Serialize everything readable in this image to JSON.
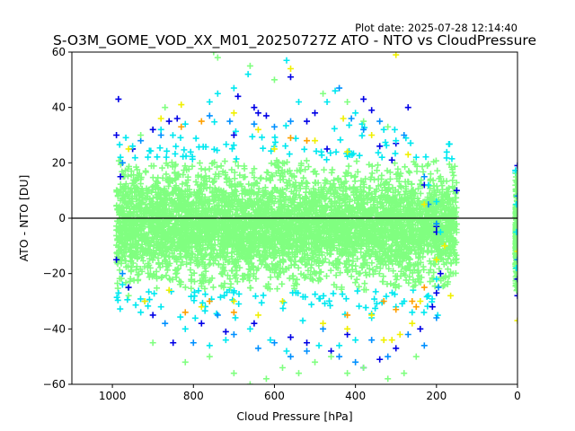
{
  "chart_data": {
    "type": "scatter",
    "title": "S-O3M_GOME_VOD_XX_M01_20250727Z ATO - NTO vs CloudPressure",
    "subtitle": "Plot date: 2025-07-28 12:14:40",
    "xlabel": "Cloud Pressure [hPa]",
    "ylabel": "ATO - NTO [DU]",
    "xlim": [
      1100,
      0
    ],
    "ylim": [
      -60,
      60
    ],
    "x_inverted": true,
    "xticks": [
      1000,
      800,
      600,
      400,
      200,
      0
    ],
    "xtick_labels": [
      "1000",
      "800",
      "600",
      "400",
      "200",
      "0"
    ],
    "yticks": [
      -60,
      -40,
      -20,
      0,
      20,
      40,
      60
    ],
    "ytick_labels": [
      "−60",
      "−40",
      "−20",
      "0",
      "20",
      "40",
      "60"
    ],
    "reference_line_y": 0,
    "grid": false,
    "marker": "plus",
    "color_levels": [
      "#0000e6",
      "#0090ff",
      "#00e8f0",
      "#80ff80",
      "#f0f000",
      "#ffa000"
    ],
    "clusters": [
      {
        "x_range": [
          990,
          150
        ],
        "y_core": [
          -30,
          25
        ],
        "colors": [
          "#80ff80",
          "#00e8f0"
        ]
      },
      {
        "x_range": [
          5,
          0
        ],
        "y_core": [
          -30,
          20
        ],
        "colors": [
          "#80ff80",
          "#00e8f0"
        ]
      }
    ],
    "series": [
      {
        "values": [
          [
            985,
            43
          ],
          [
            990,
            30
          ],
          [
            980,
            15
          ],
          [
            950,
            25
          ],
          [
            900,
            32
          ],
          [
            860,
            35
          ],
          [
            840,
            36
          ],
          [
            700,
            30
          ],
          [
            690,
            44
          ],
          [
            650,
            40
          ],
          [
            640,
            38
          ],
          [
            620,
            37
          ],
          [
            560,
            51
          ],
          [
            520,
            35
          ],
          [
            500,
            38
          ],
          [
            470,
            25
          ],
          [
            380,
            43
          ],
          [
            360,
            39
          ],
          [
            340,
            26
          ],
          [
            310,
            21
          ],
          [
            300,
            27
          ],
          [
            270,
            40
          ],
          [
            230,
            12
          ],
          [
            200,
            -3
          ],
          [
            200,
            -5
          ],
          [
            150,
            10
          ],
          [
            990,
            -15
          ],
          [
            960,
            -25
          ],
          [
            900,
            -35
          ],
          [
            850,
            -45
          ],
          [
            780,
            -38
          ],
          [
            720,
            -41
          ],
          [
            650,
            -38
          ],
          [
            560,
            -43
          ],
          [
            520,
            -45
          ],
          [
            460,
            -48
          ],
          [
            420,
            -42
          ],
          [
            380,
            -54
          ],
          [
            340,
            -51
          ],
          [
            300,
            -47
          ],
          [
            240,
            -40
          ],
          [
            210,
            -32
          ],
          [
            200,
            -27
          ],
          [
            190,
            -20
          ],
          [
            0,
            19
          ],
          [
            0,
            -28
          ],
          [
            0,
            -22
          ]
        ]
      },
      {
        "values": [
          [
            975,
            20
          ],
          [
            930,
            28
          ],
          [
            880,
            30
          ],
          [
            760,
            37
          ],
          [
            710,
            35
          ],
          [
            650,
            34
          ],
          [
            600,
            33
          ],
          [
            560,
            35
          ],
          [
            440,
            47
          ],
          [
            410,
            36
          ],
          [
            380,
            32
          ],
          [
            340,
            35
          ],
          [
            280,
            30
          ],
          [
            230,
            15
          ],
          [
            220,
            5
          ],
          [
            200,
            -2
          ],
          [
            975,
            -20
          ],
          [
            920,
            -30
          ],
          [
            870,
            -38
          ],
          [
            800,
            -45
          ],
          [
            740,
            -35
          ],
          [
            700,
            -42
          ],
          [
            640,
            -47
          ],
          [
            600,
            -45
          ],
          [
            560,
            -50
          ],
          [
            520,
            -48
          ],
          [
            480,
            -40
          ],
          [
            440,
            -50
          ],
          [
            400,
            -52
          ],
          [
            360,
            -44
          ],
          [
            320,
            -50
          ],
          [
            270,
            -42
          ],
          [
            230,
            -46
          ],
          [
            200,
            -36
          ],
          [
            195,
            -25
          ],
          [
            0,
            8
          ],
          [
            0,
            -15
          ]
        ]
      },
      {
        "values": [
          [
            980,
            22
          ],
          [
            950,
            26
          ],
          [
            880,
            32
          ],
          [
            820,
            34
          ],
          [
            760,
            42
          ],
          [
            740,
            45
          ],
          [
            700,
            47
          ],
          [
            665,
            52
          ],
          [
            570,
            57
          ],
          [
            540,
            42
          ],
          [
            470,
            42
          ],
          [
            450,
            46
          ],
          [
            400,
            38
          ],
          [
            330,
            32
          ],
          [
            300,
            28
          ],
          [
            250,
            22
          ],
          [
            220,
            12
          ],
          [
            200,
            6
          ],
          [
            190,
            -5
          ],
          [
            975,
            -24
          ],
          [
            930,
            -34
          ],
          [
            880,
            -32
          ],
          [
            820,
            -40
          ],
          [
            760,
            -46
          ],
          [
            720,
            -44
          ],
          [
            660,
            -40
          ],
          [
            610,
            -44
          ],
          [
            570,
            -48
          ],
          [
            530,
            -37
          ],
          [
            490,
            -46
          ],
          [
            440,
            -46
          ],
          [
            400,
            -44
          ],
          [
            360,
            -36
          ],
          [
            300,
            -32
          ],
          [
            260,
            -34
          ],
          [
            220,
            -28
          ],
          [
            200,
            -22
          ],
          [
            3,
            5
          ],
          [
            3,
            -5
          ],
          [
            3,
            -18
          ]
        ]
      },
      {
        "values": [
          [
            930,
            30
          ],
          [
            870,
            40
          ],
          [
            750,
            60
          ],
          [
            740,
            58
          ],
          [
            660,
            55
          ],
          [
            600,
            50
          ],
          [
            480,
            45
          ],
          [
            420,
            42
          ],
          [
            380,
            35
          ],
          [
            320,
            33
          ],
          [
            960,
            -28
          ],
          [
            900,
            -45
          ],
          [
            820,
            -52
          ],
          [
            760,
            -50
          ],
          [
            700,
            -56
          ],
          [
            660,
            -60
          ],
          [
            620,
            -58
          ],
          [
            580,
            -54
          ],
          [
            540,
            -56
          ],
          [
            500,
            -52
          ],
          [
            460,
            -50
          ],
          [
            420,
            -56
          ],
          [
            380,
            -54
          ],
          [
            320,
            -58
          ],
          [
            280,
            -56
          ],
          [
            250,
            -50
          ],
          [
            3,
            -10
          ]
        ]
      },
      {
        "values": [
          [
            960,
            25
          ],
          [
            880,
            36
          ],
          [
            830,
            41
          ],
          [
            700,
            38
          ],
          [
            640,
            32
          ],
          [
            600,
            25
          ],
          [
            560,
            54
          ],
          [
            500,
            28
          ],
          [
            430,
            36
          ],
          [
            420,
            24
          ],
          [
            360,
            30
          ],
          [
            300,
            59
          ],
          [
            270,
            23
          ],
          [
            230,
            5
          ],
          [
            180,
            -10
          ],
          [
            920,
            -30
          ],
          [
            860,
            -26
          ],
          [
            780,
            -32
          ],
          [
            700,
            -30
          ],
          [
            640,
            -35
          ],
          [
            580,
            -30
          ],
          [
            480,
            -38
          ],
          [
            420,
            -40
          ],
          [
            360,
            -35
          ],
          [
            330,
            -44
          ],
          [
            310,
            -44
          ],
          [
            290,
            -42
          ],
          [
            260,
            -38
          ],
          [
            240,
            -30
          ],
          [
            200,
            -15
          ],
          [
            165,
            -28
          ],
          [
            0,
            -12
          ],
          [
            0,
            -37
          ]
        ]
      },
      {
        "values": [
          [
            830,
            33
          ],
          [
            780,
            35
          ],
          [
            560,
            29
          ],
          [
            520,
            28
          ],
          [
            820,
            -34
          ],
          [
            760,
            -30
          ],
          [
            700,
            -34
          ],
          [
            420,
            -35
          ],
          [
            330,
            -30
          ],
          [
            300,
            -33
          ],
          [
            260,
            -30
          ],
          [
            250,
            -32
          ],
          [
            230,
            -25
          ]
        ]
      }
    ]
  }
}
